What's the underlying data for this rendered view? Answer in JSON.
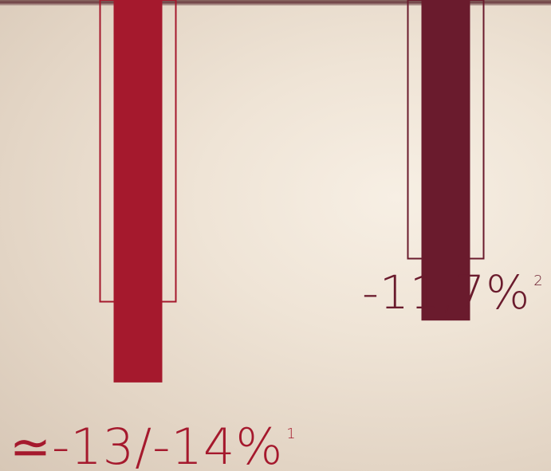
{
  "chart_data": {
    "type": "bar",
    "categories": [
      "",
      ""
    ],
    "series": [
      {
        "values": [
          -14,
          -11.7
        ],
        "colors": [
          "#a5192d",
          "#6a1b2d"
        ]
      }
    ],
    "outline_values": [
      -11,
      -9.4
    ],
    "ylim": [
      -14.3,
      0
    ],
    "grid": false,
    "title": "",
    "xlabel": "",
    "ylabel": "",
    "labels": [
      {
        "text": "≃-13/-14%",
        "footnote": "1"
      },
      {
        "text": "-11,7%",
        "footnote": "2"
      }
    ]
  }
}
